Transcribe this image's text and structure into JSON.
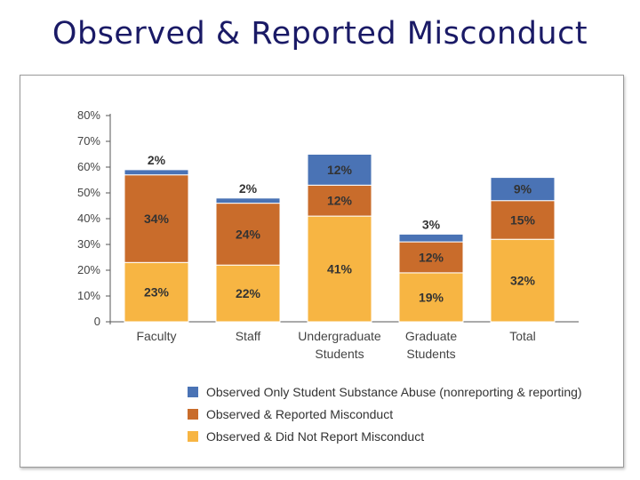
{
  "slide": {
    "title": "Observed & Reported Misconduct"
  },
  "chart_data": {
    "type": "bar",
    "stacked": true,
    "title": "",
    "xlabel": "",
    "ylabel": "",
    "ylim": [
      0,
      80
    ],
    "yticks": [
      0,
      10,
      20,
      30,
      40,
      50,
      60,
      70,
      80
    ],
    "ytick_labels": [
      "0",
      "10%",
      "20%",
      "30%",
      "40%",
      "50%",
      "60%",
      "70%",
      "80%"
    ],
    "categories": [
      "Faculty",
      "Staff",
      "Undergraduate Students",
      "Graduate Students",
      "Total"
    ],
    "category_lines": [
      [
        "Faculty"
      ],
      [
        "Staff"
      ],
      [
        "Undergraduate",
        "Students"
      ],
      [
        "Graduate",
        "Students"
      ],
      [
        "Total"
      ]
    ],
    "series": [
      {
        "name": "Observed & Did Not Report Misconduct",
        "color": "#f7b543",
        "label_color": "#333333",
        "values": [
          23,
          22,
          41,
          19,
          32
        ],
        "labels": [
          "23%",
          "22%",
          "41%",
          "19%",
          "32%"
        ]
      },
      {
        "name": "Observed & Reported Misconduct",
        "color": "#c96c2b",
        "label_color": "#333333",
        "values": [
          34,
          24,
          12,
          12,
          15
        ],
        "labels": [
          "34%",
          "24%",
          "12%",
          "12%",
          "15%"
        ]
      },
      {
        "name": "Observed Only Student Substance Abuse (nonreporting & reporting)",
        "color": "#4a73b5",
        "label_color": "#1f2a4a",
        "values": [
          2,
          2,
          12,
          3,
          9
        ],
        "labels": [
          "2%",
          "2%",
          "12%",
          "3%",
          "9%"
        ]
      }
    ],
    "legend_order": [
      2,
      1,
      0
    ],
    "legend_position": "bottom-left"
  }
}
